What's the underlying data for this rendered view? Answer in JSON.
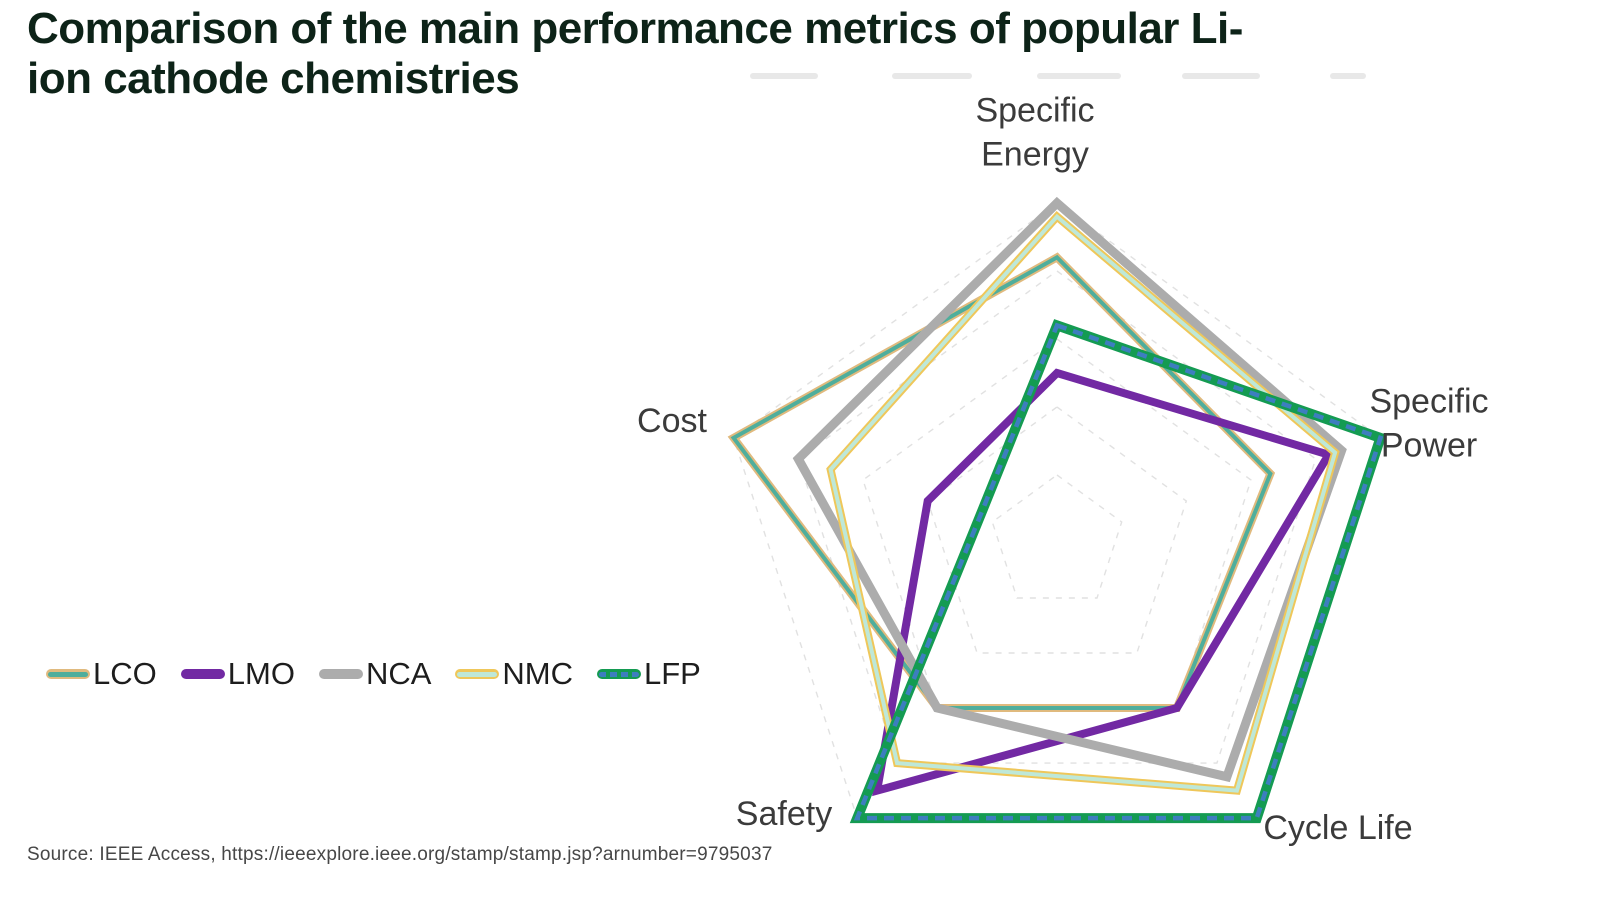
{
  "title": {
    "line1": "Comparison of the main performance metrics of popular Li-",
    "line2": "ion cathode chemistries"
  },
  "source": "Source: IEEE Access, https://ieeexplore.ieee.org/stamp/stamp.jsp?arnumber=9795037",
  "chart_data": {
    "type": "radar",
    "axes": [
      "Specific Energy",
      "Specific Power",
      "Cycle Life",
      "Safety",
      "Cost"
    ],
    "scale": {
      "min": 0,
      "max": 5,
      "rings": 5,
      "ring_step": 1
    },
    "layout": {
      "grid": "dashed concentric pentagon rings, no radial spokes",
      "grid_color": "#dcdcdc",
      "legend_position": "middle-left",
      "start_axis": "top",
      "direction": "clockwise"
    },
    "series": [
      {
        "name": "LCO",
        "values": [
          4.2,
          3.3,
          3.0,
          3.0,
          5.0
        ],
        "color": "#4fae9c",
        "outline": "#e0ba7e",
        "width": 4,
        "outline_width": 8
      },
      {
        "name": "LMO",
        "values": [
          2.5,
          4.2,
          3.0,
          4.5,
          2.0
        ],
        "color": "#7229a3",
        "width": 8
      },
      {
        "name": "NCA",
        "values": [
          5.0,
          4.4,
          4.25,
          3.0,
          4.0
        ],
        "color": "#acacac",
        "width": 9
      },
      {
        "name": "NMC",
        "values": [
          4.8,
          4.3,
          4.5,
          4.0,
          3.5
        ],
        "color": "#bee8d8",
        "outline": "#efc75a",
        "width": 4,
        "outline_width": 8
      },
      {
        "name": "LFP",
        "values": [
          3.2,
          5.0,
          5.0,
          5.0,
          1.2
        ],
        "color": "#3d7ebf",
        "outline": "#149b52",
        "width": 4.5,
        "outline_width": 10,
        "dasharray": "10 7"
      }
    ]
  }
}
